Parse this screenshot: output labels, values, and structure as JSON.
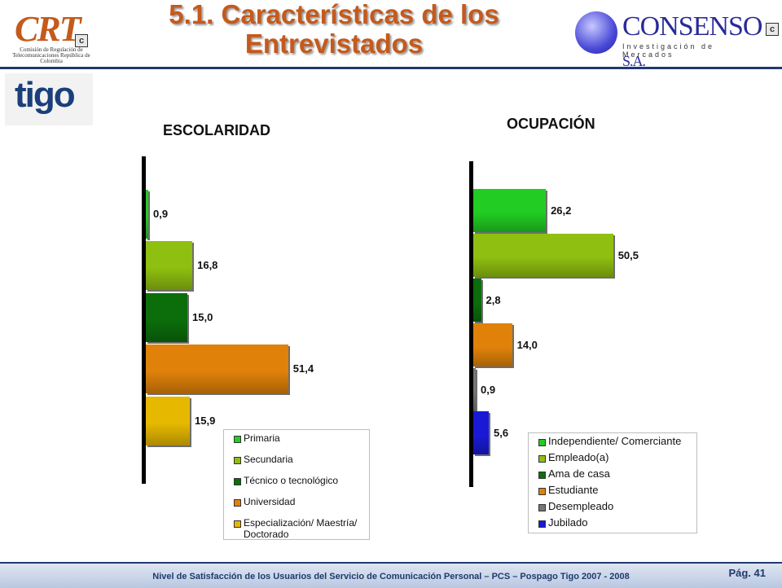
{
  "header": {
    "title_line1": "5.1. Características de los",
    "title_line2": "Entrevistados",
    "crt_word": "CRT",
    "crt_box": "c",
    "crt_subtitle": "Comisión de Regulación de Telecomunicaciones República de Colombia",
    "consenso_name": "CONSENSO",
    "consenso_sa": "S.A.",
    "consenso_tagline": "Investigación de Mercados",
    "tigo_word": "tigo"
  },
  "footer": {
    "text": "Nivel de Satisfacción de los Usuarios del Servicio de Comunicación Personal – PCS – Pospago Tigo 2007 - 2008",
    "page": "Pág. 41"
  },
  "chart_data": [
    {
      "type": "bar",
      "orientation": "horizontal",
      "title": "ESCOLARIDAD",
      "categories": [
        "Primaria",
        "Secundaria",
        "Técnico o tecnológico",
        "Universidad",
        "Especialización/ Maestría/ Doctorado"
      ],
      "values": [
        0.9,
        16.8,
        15.0,
        51.4,
        15.9
      ],
      "labels": [
        "0,9",
        "16,8",
        "15,0",
        "51,4",
        "15,9"
      ],
      "legend_labels": [
        "Primaria",
        "Secundaria",
        "Técnico o tecnológico",
        "Universidad",
        "Especialización/ Maestría/",
        "Doctorado"
      ],
      "colors": [
        "#22cc22",
        "#8fbf10",
        "#0b6e0b",
        "#e0820a",
        "#e6b800"
      ],
      "legend_position": "bottom-right",
      "grid": false
    },
    {
      "type": "bar",
      "orientation": "horizontal",
      "title": "OCUPACIÓN",
      "categories": [
        "Independiente/ Comerciante",
        "Empleado(a)",
        "Ama de casa",
        "Estudiante",
        "Desempleado",
        "Jubilado"
      ],
      "values": [
        26.2,
        50.5,
        2.8,
        14.0,
        0.9,
        5.6
      ],
      "labels": [
        "26,2",
        "50,5",
        "2,8",
        "14,0",
        "0,9",
        "5,6"
      ],
      "colors": [
        "#22cc22",
        "#8fbf10",
        "#0b6e0b",
        "#e0820a",
        "#777777",
        "#1a1ad6"
      ],
      "legend_position": "bottom-right",
      "grid": false
    }
  ]
}
